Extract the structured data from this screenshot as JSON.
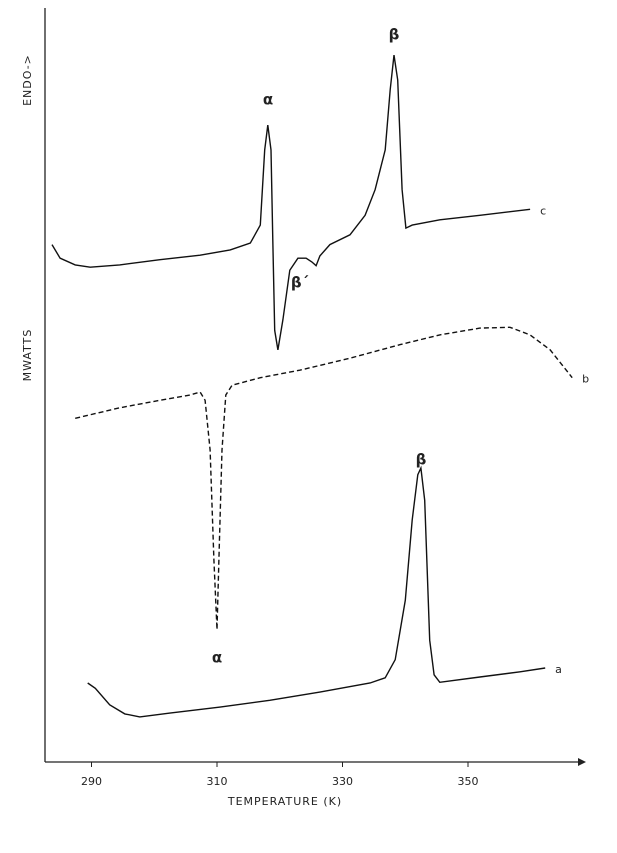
{
  "chart_data": {
    "type": "line",
    "x_label": "TEMPERATURE (K)",
    "y_label": "MWATTS",
    "y_direction_label": "ENDO->",
    "xlim": [
      283,
      367
    ],
    "ylim": [
      0,
      100
    ],
    "xticks": [
      290,
      310,
      330,
      350
    ],
    "series": [
      {
        "name": "c",
        "color": "#111111",
        "line_style": "solid",
        "x": [
          283.7,
          285.0,
          287.4,
          289.8,
          294.5,
          300.9,
          307.3,
          312.1,
          315.3,
          316.9,
          317.6,
          318.1,
          318.6,
          318.9,
          319.2,
          319.7,
          320.5,
          321.6,
          322.9,
          324.2,
          325.1,
          325.8,
          326.4,
          328.0,
          331.2,
          333.6,
          335.2,
          336.8,
          337.6,
          338.2,
          338.8,
          339.5,
          340.1,
          341.1,
          345.5,
          351.9,
          359.9
        ],
        "values": [
          68.8,
          67.0,
          66.1,
          65.8,
          66.1,
          66.8,
          67.4,
          68.1,
          69.0,
          71.4,
          81.4,
          84.7,
          81.4,
          69.4,
          57.4,
          54.8,
          58.8,
          65.4,
          67.0,
          67.0,
          66.5,
          66.0,
          67.3,
          68.8,
          70.1,
          72.7,
          76.1,
          81.4,
          89.4,
          94.0,
          90.7,
          76.1,
          71.0,
          71.4,
          72.1,
          72.7,
          73.5
        ]
      },
      {
        "name": "b",
        "color": "#111111",
        "line_style": "dashed",
        "x": [
          287.4,
          294.5,
          300.9,
          305.7,
          307.3,
          308.1,
          308.9,
          309.5,
          310.0,
          310.3,
          310.8,
          311.4,
          312.4,
          316.9,
          323.2,
          331.2,
          339.2,
          345.5,
          351.9,
          356.7,
          359.9,
          363.1,
          365.0,
          366.6
        ],
        "values": [
          45.7,
          47.1,
          48.1,
          48.8,
          49.2,
          48.1,
          41.5,
          26.9,
          17.6,
          26.9,
          41.5,
          48.8,
          50.1,
          51.1,
          52.1,
          53.7,
          55.5,
          56.8,
          57.7,
          57.8,
          56.8,
          54.8,
          52.8,
          51.1
        ]
      },
      {
        "name": "a",
        "color": "#111111",
        "line_style": "solid",
        "x": [
          289.4,
          290.6,
          292.9,
          295.3,
          297.7,
          302.5,
          310.5,
          318.4,
          326.4,
          334.4,
          336.8,
          338.4,
          340.0,
          341.1,
          342.0,
          342.5,
          343.1,
          343.9,
          344.6,
          345.5,
          351.9,
          358.3,
          362.3
        ],
        "values": [
          10.5,
          9.8,
          7.6,
          6.4,
          6.0,
          6.5,
          7.3,
          8.2,
          9.3,
          10.5,
          11.2,
          13.6,
          21.5,
          32.2,
          38.2,
          39.1,
          34.8,
          16.2,
          11.6,
          10.6,
          11.3,
          12.0,
          12.5
        ]
      }
    ],
    "annotations": [
      "α",
      "β",
      "β´",
      "α",
      "β"
    ]
  }
}
